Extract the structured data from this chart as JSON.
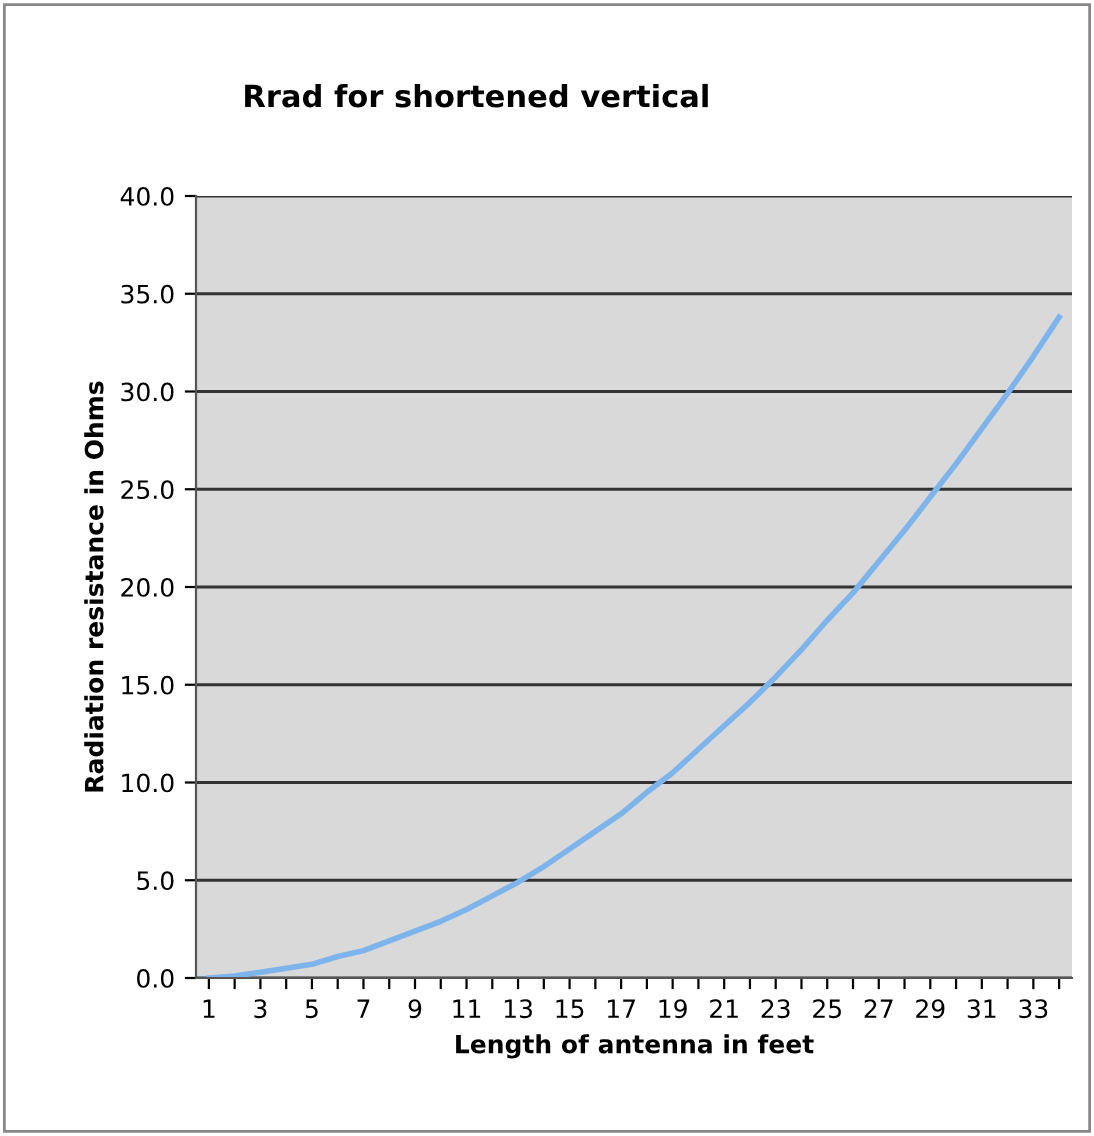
{
  "chart_data": {
    "type": "line",
    "title": "Rrad for shortened vertical",
    "xlabel": "Length of antenna in feet",
    "ylabel": "Radiation resistance in Ohms",
    "categories": [
      "1",
      null,
      "3",
      null,
      "5",
      null,
      "7",
      null,
      "9",
      null,
      "11",
      null,
      "13",
      null,
      "15",
      null,
      "17",
      null,
      "19",
      null,
      "21",
      null,
      "23",
      null,
      "25",
      null,
      "27",
      null,
      "29",
      null,
      "31",
      null,
      "33",
      null
    ],
    "series": [
      {
        "color": "#7db4ec",
        "values": [
          0.0,
          0.1,
          0.3,
          0.5,
          0.7,
          1.1,
          1.4,
          1.9,
          2.4,
          2.9,
          3.5,
          4.2,
          4.9,
          5.7,
          6.6,
          7.5,
          8.4,
          9.5,
          10.5,
          11.7,
          12.9,
          14.1,
          15.4,
          16.8,
          18.3,
          19.7,
          21.3,
          22.9,
          24.6,
          26.3,
          28.1,
          29.9,
          31.8,
          33.8
        ]
      }
    ],
    "ylim": [
      0,
      40
    ],
    "yticks": [
      {
        "value": 0,
        "label": "0.0"
      },
      {
        "value": 5,
        "label": "5.0"
      },
      {
        "value": 10,
        "label": "10.0"
      },
      {
        "value": 15,
        "label": "15.0"
      },
      {
        "value": 20,
        "label": "20.0"
      },
      {
        "value": 25,
        "label": "25.0"
      },
      {
        "value": 30,
        "label": "30.0"
      },
      {
        "value": 35,
        "label": "35.0"
      },
      {
        "value": 40,
        "label": "40.0"
      }
    ],
    "grid": "y",
    "marker": "none",
    "line_style": "solid"
  }
}
